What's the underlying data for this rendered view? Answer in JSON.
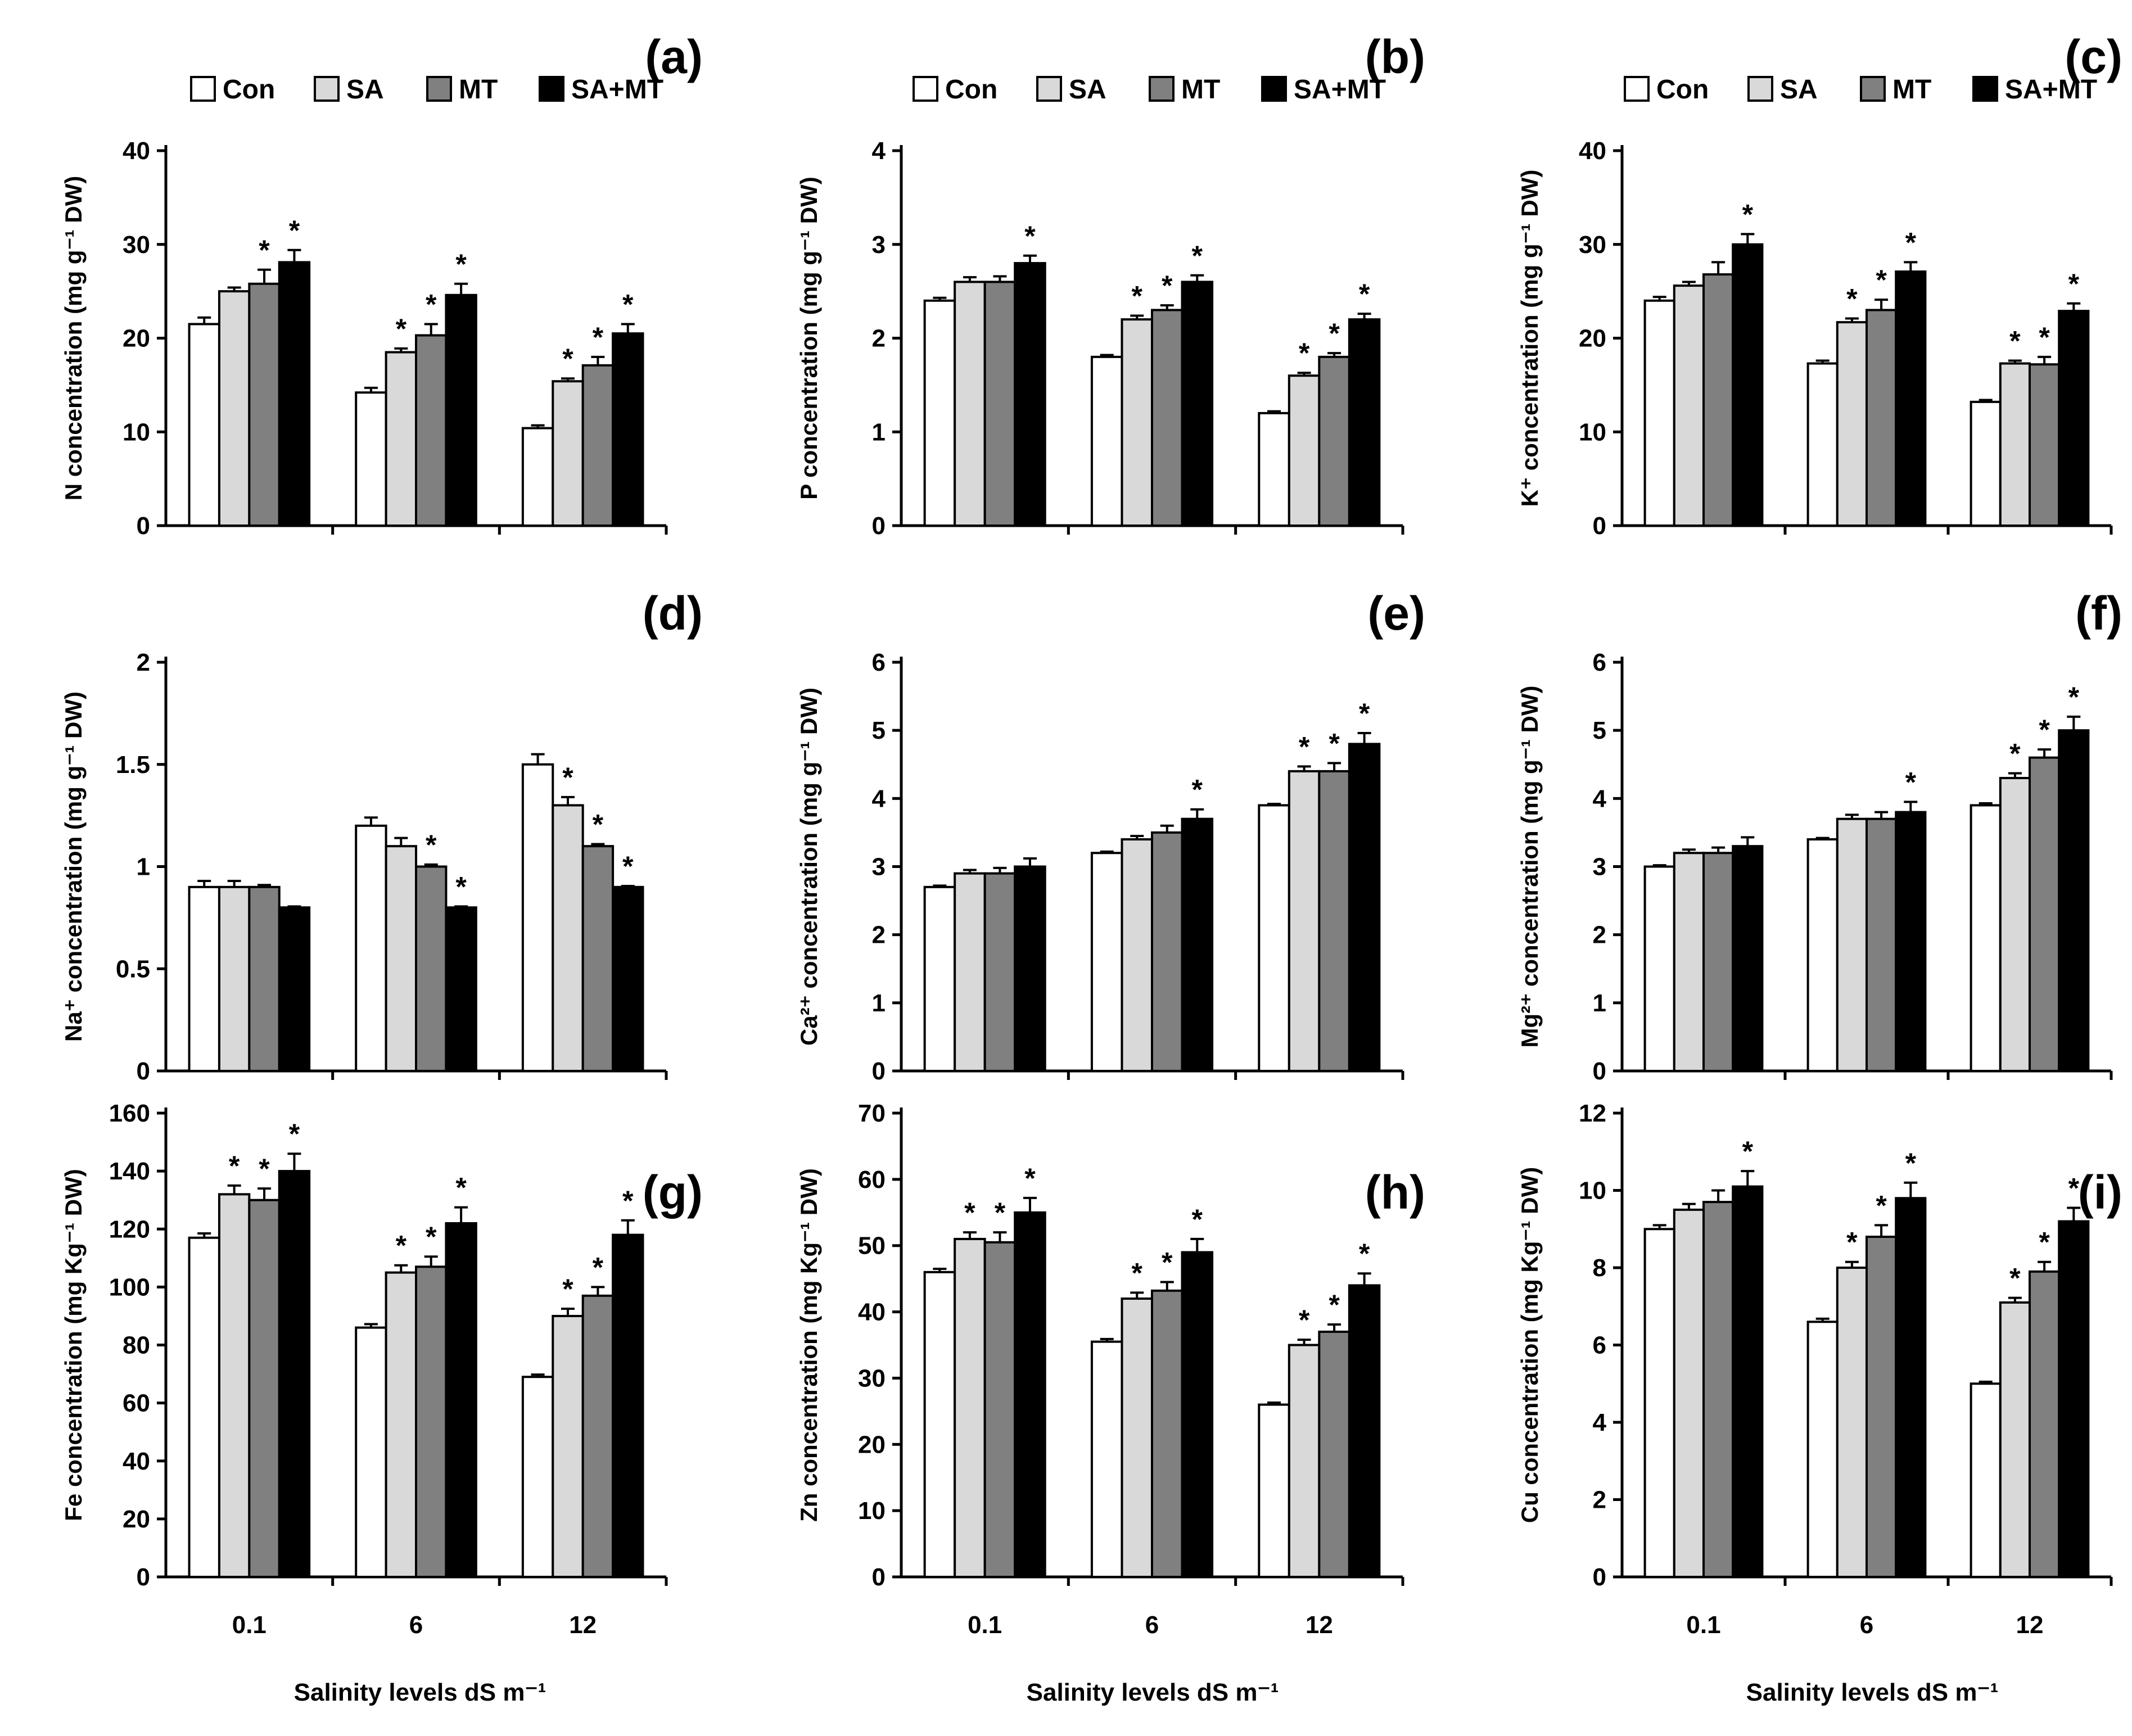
{
  "colors": {
    "Con": "#ffffff",
    "SA": "#d9d9d9",
    "MT": "#808080",
    "SA+MT": "#000000"
  },
  "legend": [
    "Con",
    "SA",
    "MT",
    "SA+MT"
  ],
  "x_axis_title": "Salinity levels dS m⁻¹",
  "chart_data": [
    {
      "type": "bar",
      "panel": "(a)",
      "categories": [
        "0.1",
        "6",
        "12"
      ],
      "ylabel": "N concentration (mg g⁻¹ DW)",
      "ylim": [
        0,
        40
      ],
      "yticks": [
        0,
        10,
        20,
        30,
        40
      ],
      "yticklabels": [
        "0",
        "10",
        "20",
        "30",
        "40"
      ],
      "show_legend": true,
      "show_xticklabels": false,
      "series": [
        {
          "name": "Con",
          "values": [
            21.5,
            14.2,
            10.4
          ],
          "errors": [
            0.7,
            0.5,
            0.3
          ],
          "sig": [
            false,
            false,
            false
          ]
        },
        {
          "name": "SA",
          "values": [
            25.0,
            18.5,
            15.4
          ],
          "errors": [
            0.4,
            0.4,
            0.3
          ],
          "sig": [
            false,
            true,
            true
          ]
        },
        {
          "name": "MT",
          "values": [
            25.8,
            20.3,
            17.1
          ],
          "errors": [
            1.5,
            1.2,
            0.9
          ],
          "sig": [
            true,
            true,
            true
          ]
        },
        {
          "name": "SA+MT",
          "values": [
            28.1,
            24.6,
            20.5
          ],
          "errors": [
            1.3,
            1.2,
            1.0
          ],
          "sig": [
            true,
            true,
            true
          ]
        }
      ]
    },
    {
      "type": "bar",
      "panel": "(b)",
      "categories": [
        "0.1",
        "6",
        "12"
      ],
      "ylabel": "P concentration (mg g⁻¹ DW)",
      "ylim": [
        0,
        4
      ],
      "yticks": [
        0,
        1,
        2,
        3,
        4
      ],
      "yticklabels": [
        "0",
        "1",
        "2",
        "3",
        "4"
      ],
      "show_legend": true,
      "show_xticklabels": false,
      "series": [
        {
          "name": "Con",
          "values": [
            2.4,
            1.8,
            1.2
          ],
          "errors": [
            0.03,
            0.02,
            0.02
          ],
          "sig": [
            false,
            false,
            false
          ]
        },
        {
          "name": "SA",
          "values": [
            2.6,
            2.2,
            1.6
          ],
          "errors": [
            0.05,
            0.04,
            0.03
          ],
          "sig": [
            false,
            true,
            true
          ]
        },
        {
          "name": "MT",
          "values": [
            2.6,
            2.3,
            1.8
          ],
          "errors": [
            0.06,
            0.05,
            0.04
          ],
          "sig": [
            false,
            true,
            true
          ]
        },
        {
          "name": "SA+MT",
          "values": [
            2.8,
            2.6,
            2.2
          ],
          "errors": [
            0.08,
            0.07,
            0.06
          ],
          "sig": [
            true,
            true,
            true
          ]
        }
      ]
    },
    {
      "type": "bar",
      "panel": "(c)",
      "categories": [
        "0.1",
        "6",
        "12"
      ],
      "ylabel": "K⁺ concentration (mg g⁻¹ DW)",
      "ylim": [
        0,
        40
      ],
      "yticks": [
        0,
        10,
        20,
        30,
        40
      ],
      "yticklabels": [
        "0",
        "10",
        "20",
        "30",
        "40"
      ],
      "show_legend": true,
      "show_xticklabels": false,
      "series": [
        {
          "name": "Con",
          "values": [
            24.0,
            17.3,
            13.2
          ],
          "errors": [
            0.4,
            0.3,
            0.2
          ],
          "sig": [
            false,
            false,
            false
          ]
        },
        {
          "name": "SA",
          "values": [
            25.6,
            21.7,
            17.3
          ],
          "errors": [
            0.4,
            0.4,
            0.3
          ],
          "sig": [
            false,
            true,
            true
          ]
        },
        {
          "name": "MT",
          "values": [
            26.8,
            23.0,
            17.2
          ],
          "errors": [
            1.3,
            1.1,
            0.8
          ],
          "sig": [
            false,
            true,
            true
          ]
        },
        {
          "name": "SA+MT",
          "values": [
            30.0,
            27.1,
            22.9
          ],
          "errors": [
            1.1,
            1.0,
            0.8
          ],
          "sig": [
            true,
            true,
            true
          ]
        }
      ]
    },
    {
      "type": "bar",
      "panel": "(d)",
      "categories": [
        "0.1",
        "6",
        "12"
      ],
      "ylabel": "Na⁺ concentration (mg g⁻¹ DW)",
      "ylim": [
        0,
        2
      ],
      "yticks": [
        0,
        0.5,
        1,
        1.5,
        2
      ],
      "yticklabels": [
        "0",
        "0.5",
        "1",
        "1.5",
        "2"
      ],
      "show_legend": false,
      "show_xticklabels": false,
      "series": [
        {
          "name": "Con",
          "values": [
            0.9,
            1.2,
            1.5
          ],
          "errors": [
            0.03,
            0.04,
            0.05
          ],
          "sig": [
            false,
            false,
            false
          ]
        },
        {
          "name": "SA",
          "values": [
            0.9,
            1.1,
            1.3
          ],
          "errors": [
            0.03,
            0.04,
            0.04
          ],
          "sig": [
            false,
            false,
            true
          ]
        },
        {
          "name": "MT",
          "values": [
            0.9,
            1.0,
            1.1
          ],
          "errors": [
            0.01,
            0.01,
            0.01
          ],
          "sig": [
            false,
            true,
            true
          ]
        },
        {
          "name": "SA+MT",
          "values": [
            0.8,
            0.8,
            0.9
          ],
          "errors": [
            0.005,
            0.005,
            0.005
          ],
          "sig": [
            false,
            true,
            true
          ]
        }
      ]
    },
    {
      "type": "bar",
      "panel": "(e)",
      "categories": [
        "0.1",
        "6",
        "12"
      ],
      "ylabel": "Ca²⁺ concentration (mg g⁻¹ DW)",
      "ylim": [
        0,
        6
      ],
      "yticks": [
        0,
        1,
        2,
        3,
        4,
        5,
        6
      ],
      "yticklabels": [
        "0",
        "1",
        "2",
        "3",
        "4",
        "5",
        "6"
      ],
      "show_legend": false,
      "show_xticklabels": false,
      "series": [
        {
          "name": "Con",
          "values": [
            2.7,
            3.2,
            3.9
          ],
          "errors": [
            0.02,
            0.02,
            0.02
          ],
          "sig": [
            false,
            false,
            false
          ]
        },
        {
          "name": "SA",
          "values": [
            2.9,
            3.4,
            4.4
          ],
          "errors": [
            0.05,
            0.05,
            0.07
          ],
          "sig": [
            false,
            false,
            true
          ]
        },
        {
          "name": "MT",
          "values": [
            2.9,
            3.5,
            4.4
          ],
          "errors": [
            0.08,
            0.1,
            0.12
          ],
          "sig": [
            false,
            false,
            true
          ]
        },
        {
          "name": "SA+MT",
          "values": [
            3.0,
            3.7,
            4.8
          ],
          "errors": [
            0.12,
            0.14,
            0.16
          ],
          "sig": [
            false,
            true,
            true
          ]
        }
      ]
    },
    {
      "type": "bar",
      "panel": "(f)",
      "categories": [
        "0.1",
        "6",
        "12"
      ],
      "ylabel": "Mg²⁺ concentration (mg g⁻¹ DW)",
      "ylim": [
        0,
        6
      ],
      "yticks": [
        0,
        1,
        2,
        3,
        4,
        5,
        6
      ],
      "yticklabels": [
        "0",
        "1",
        "2",
        "3",
        "4",
        "5",
        "6"
      ],
      "show_legend": false,
      "show_xticklabels": false,
      "series": [
        {
          "name": "Con",
          "values": [
            3.0,
            3.4,
            3.9
          ],
          "errors": [
            0.02,
            0.02,
            0.03
          ],
          "sig": [
            false,
            false,
            false
          ]
        },
        {
          "name": "SA",
          "values": [
            3.2,
            3.7,
            4.3
          ],
          "errors": [
            0.05,
            0.06,
            0.07
          ],
          "sig": [
            false,
            false,
            true
          ]
        },
        {
          "name": "MT",
          "values": [
            3.2,
            3.7,
            4.6
          ],
          "errors": [
            0.08,
            0.1,
            0.12
          ],
          "sig": [
            false,
            false,
            true
          ]
        },
        {
          "name": "SA+MT",
          "values": [
            3.3,
            3.8,
            5.0
          ],
          "errors": [
            0.13,
            0.15,
            0.2
          ],
          "sig": [
            false,
            true,
            true
          ]
        }
      ]
    },
    {
      "type": "bar",
      "panel": "(g)",
      "categories": [
        "0.1",
        "6",
        "12"
      ],
      "ylabel": "Fe concentration (mg Kg⁻¹ DW)",
      "ylim": [
        0,
        160
      ],
      "yticks": [
        0,
        20,
        40,
        60,
        80,
        100,
        120,
        140,
        160
      ],
      "yticklabels": [
        "0",
        "20",
        "40",
        "60",
        "80",
        "100",
        "120",
        "140",
        "160"
      ],
      "show_legend": false,
      "show_xticklabels": true,
      "series": [
        {
          "name": "Con",
          "values": [
            117,
            86,
            69
          ],
          "errors": [
            1.5,
            1.2,
            0.8
          ],
          "sig": [
            false,
            false,
            false
          ]
        },
        {
          "name": "SA",
          "values": [
            132,
            105,
            90
          ],
          "errors": [
            3,
            2.5,
            2.5
          ],
          "sig": [
            true,
            true,
            true
          ]
        },
        {
          "name": "MT",
          "values": [
            130,
            107,
            97
          ],
          "errors": [
            4,
            3.5,
            3
          ],
          "sig": [
            true,
            true,
            true
          ]
        },
        {
          "name": "SA+MT",
          "values": [
            140,
            122,
            118
          ],
          "errors": [
            6,
            5.5,
            5
          ],
          "sig": [
            true,
            true,
            true
          ]
        }
      ]
    },
    {
      "type": "bar",
      "panel": "(h)",
      "categories": [
        "0.1",
        "6",
        "12"
      ],
      "ylabel": "Zn concentration (mg Kg⁻¹ DW)",
      "ylim": [
        0,
        70
      ],
      "yticks": [
        0,
        10,
        20,
        30,
        40,
        50,
        60,
        70
      ],
      "yticklabels": [
        "0",
        "10",
        "20",
        "30",
        "40",
        "50",
        "60",
        "70"
      ],
      "show_legend": false,
      "show_xticklabels": true,
      "series": [
        {
          "name": "Con",
          "values": [
            46,
            35.5,
            26
          ],
          "errors": [
            0.5,
            0.4,
            0.3
          ],
          "sig": [
            false,
            false,
            false
          ]
        },
        {
          "name": "SA",
          "values": [
            51,
            42,
            35
          ],
          "errors": [
            1,
            0.9,
            0.8
          ],
          "sig": [
            true,
            true,
            true
          ]
        },
        {
          "name": "MT",
          "values": [
            50.5,
            43.2,
            37
          ],
          "errors": [
            1.5,
            1.3,
            1.1
          ],
          "sig": [
            true,
            true,
            true
          ]
        },
        {
          "name": "SA+MT",
          "values": [
            55,
            49,
            44
          ],
          "errors": [
            2.2,
            2,
            1.8
          ],
          "sig": [
            true,
            true,
            true
          ]
        }
      ]
    },
    {
      "type": "bar",
      "panel": "(i)",
      "categories": [
        "0.1",
        "6",
        "12"
      ],
      "ylabel": "Cu concentration (mg Kg⁻¹ DW)",
      "ylim": [
        0,
        12
      ],
      "yticks": [
        0,
        2,
        4,
        6,
        8,
        10,
        12
      ],
      "yticklabels": [
        "0",
        "2",
        "4",
        "6",
        "8",
        "10",
        "12"
      ],
      "show_legend": false,
      "show_xticklabels": true,
      "series": [
        {
          "name": "Con",
          "values": [
            9.0,
            6.6,
            5.0
          ],
          "errors": [
            0.1,
            0.08,
            0.05
          ],
          "sig": [
            false,
            false,
            false
          ]
        },
        {
          "name": "SA",
          "values": [
            9.5,
            8.0,
            7.1
          ],
          "errors": [
            0.15,
            0.15,
            0.12
          ],
          "sig": [
            false,
            true,
            true
          ]
        },
        {
          "name": "MT",
          "values": [
            9.7,
            8.8,
            7.9
          ],
          "errors": [
            0.3,
            0.3,
            0.25
          ],
          "sig": [
            false,
            true,
            true
          ]
        },
        {
          "name": "SA+MT",
          "values": [
            10.1,
            9.8,
            9.2
          ],
          "errors": [
            0.4,
            0.4,
            0.35
          ],
          "sig": [
            true,
            true,
            true
          ]
        }
      ]
    }
  ]
}
